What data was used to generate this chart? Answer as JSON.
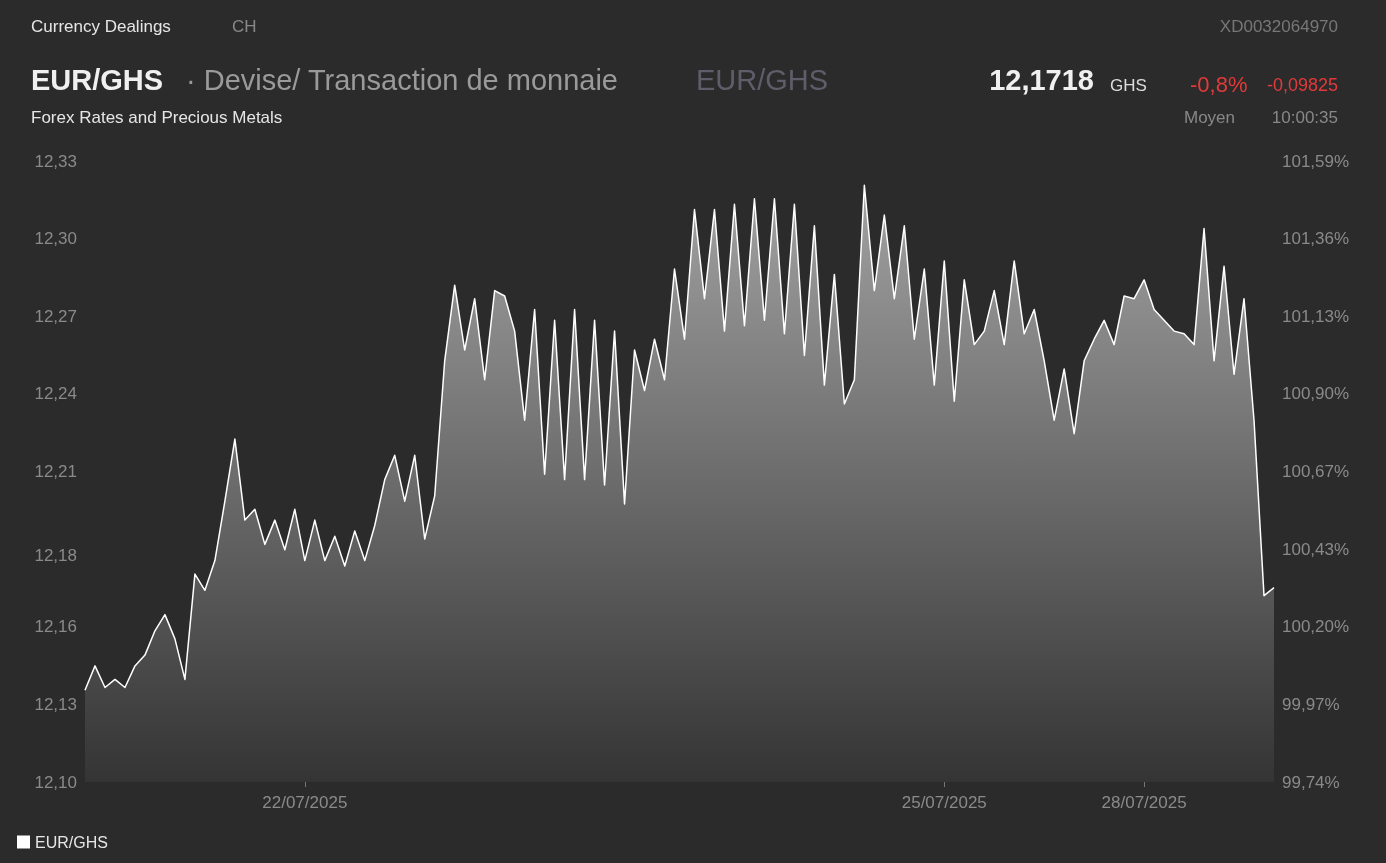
{
  "chart_data": {
    "type": "area",
    "title": "EUR/GHS",
    "subtitle": "· Devise/ Transaction de monnaie",
    "annotations": [
      "Currency Dealings",
      "CH",
      "XD0032064970",
      "EUR/GHS",
      "12,1718",
      "GHS",
      "-0,8%",
      "-0,09825",
      "Forex Rates and Precious Metals",
      "Moyen",
      "10:00:35"
    ],
    "categories": [
      null,
      null,
      null,
      null,
      null,
      null,
      null,
      null,
      null,
      null,
      null,
      null,
      null,
      null,
      null,
      null,
      null,
      null,
      null,
      null,
      null,
      null,
      "22/07/2025",
      null,
      null,
      null,
      null,
      null,
      null,
      null,
      null,
      null,
      null,
      null,
      null,
      null,
      null,
      null,
      null,
      null,
      null,
      null,
      null,
      null,
      null,
      null,
      null,
      null,
      null,
      null,
      null,
      null,
      null,
      null,
      null,
      null,
      null,
      null,
      null,
      null,
      null,
      null,
      null,
      null,
      null,
      null,
      null,
      null,
      null,
      null,
      null,
      null,
      null,
      null,
      null,
      null,
      null,
      null,
      null,
      null,
      null,
      null,
      null,
      null,
      null,
      null,
      "25/07/2025",
      null,
      null,
      null,
      null,
      null,
      null,
      null,
      null,
      null,
      null,
      null,
      null,
      null,
      null,
      null,
      null,
      null,
      null,
      null,
      "28/07/2025",
      null,
      null,
      null,
      null,
      null,
      null,
      null,
      null,
      null,
      null,
      null,
      null,
      null
    ],
    "series": [
      {
        "name": "EUR/GHS",
        "color": "#ffffff",
        "values": [
          12.134,
          12.143,
          12.135,
          12.138,
          12.135,
          12.143,
          12.147,
          12.156,
          12.162,
          12.153,
          12.138,
          12.177,
          12.171,
          12.182,
          12.204,
          12.227,
          12.197,
          12.201,
          12.188,
          12.197,
          12.186,
          12.201,
          12.182,
          12.197,
          12.182,
          12.191,
          12.18,
          12.193,
          12.182,
          12.195,
          12.212,
          12.221,
          12.204,
          12.221,
          12.19,
          12.206,
          12.256,
          12.284,
          12.26,
          12.279,
          12.249,
          12.282,
          12.28,
          12.267,
          12.234,
          12.275,
          12.214,
          12.271,
          12.212,
          12.275,
          12.212,
          12.271,
          12.21,
          12.267,
          12.203,
          12.26,
          12.245,
          12.264,
          12.249,
          12.29,
          12.264,
          12.312,
          12.279,
          12.312,
          12.267,
          12.314,
          12.269,
          12.316,
          12.271,
          12.316,
          12.266,
          12.314,
          12.258,
          12.306,
          12.247,
          12.288,
          12.24,
          12.249,
          12.321,
          12.282,
          12.31,
          12.279,
          12.306,
          12.264,
          12.29,
          12.247,
          12.293,
          12.241,
          12.286,
          12.262,
          12.267,
          12.282,
          12.262,
          12.293,
          12.266,
          12.275,
          12.256,
          12.234,
          12.253,
          12.229,
          12.256,
          12.264,
          12.271,
          12.262,
          12.28,
          12.279,
          12.286,
          12.275,
          12.271,
          12.267,
          12.266,
          12.262,
          12.305,
          12.256,
          12.291,
          12.251,
          12.279,
          12.234,
          12.169,
          12.172
        ]
      }
    ],
    "ylim": [
      12.1,
      12.33
    ],
    "yticks": [
      {
        "value": 12.1,
        "label": "12,10"
      },
      {
        "value": 12.12875,
        "label": "12,13"
      },
      {
        "value": 12.1575,
        "label": "12,16"
      },
      {
        "value": 12.184,
        "label": "12,18"
      },
      {
        "value": 12.215,
        "label": "12,21"
      },
      {
        "value": 12.24375,
        "label": "12,24"
      },
      {
        "value": 12.2725,
        "label": "12,27"
      },
      {
        "value": 12.30125,
        "label": "12,30"
      },
      {
        "value": 12.33,
        "label": "12,33"
      }
    ],
    "y2lim": [
      99.74,
      101.59
    ],
    "y2ticks": [
      {
        "value": 99.74,
        "label": "99,74%"
      },
      {
        "value": 99.97125,
        "label": "99,97%"
      },
      {
        "value": 100.2025,
        "label": "100,20%"
      },
      {
        "value": 100.43375,
        "label": "100,43%"
      },
      {
        "value": 100.665,
        "label": "100,67%"
      },
      {
        "value": 100.89625,
        "label": "100,90%"
      },
      {
        "value": 101.1275,
        "label": "101,13%"
      },
      {
        "value": 101.35875,
        "label": "101,36%"
      },
      {
        "value": 101.59,
        "label": "101,59%"
      }
    ],
    "grid": false,
    "legend": "bottom left"
  }
}
